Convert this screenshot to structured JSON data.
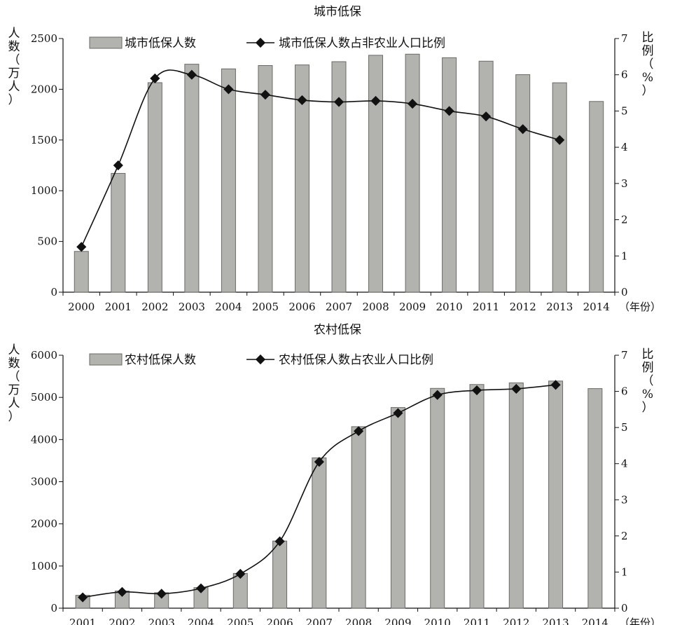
{
  "chart_data": [
    {
      "type": "bar+line",
      "title": "城市低保",
      "categories": [
        "2000",
        "2001",
        "2002",
        "2003",
        "2004",
        "2005",
        "2006",
        "2007",
        "2008",
        "2009",
        "2010",
        "2011",
        "2012",
        "2013",
        "2014"
      ],
      "x_unit": "（年份）",
      "y_left_label": [
        "人",
        "数",
        "（",
        "万",
        "人",
        "）"
      ],
      "y_right_label": [
        "比",
        "例",
        "（",
        "%",
        "）"
      ],
      "y_left_lim": [
        0,
        2500
      ],
      "y_left_ticks": [
        0,
        500,
        1000,
        1500,
        2000,
        2500
      ],
      "y_right_lim": [
        0,
        7
      ],
      "y_right_ticks": [
        0,
        1,
        2,
        3,
        4,
        5,
        6,
        7
      ],
      "series": [
        {
          "name": "城市低保人数",
          "kind": "bar",
          "axis": "left",
          "values": [
            402,
            1171,
            2065,
            2247,
            2201,
            2234,
            2240,
            2272,
            2335,
            2346,
            2311,
            2277,
            2144,
            2064,
            1880
          ]
        },
        {
          "name": "城市低保人数占非农业人口比例",
          "kind": "line",
          "axis": "right",
          "values": [
            1.25,
            3.5,
            5.9,
            6.0,
            5.6,
            5.45,
            5.3,
            5.25,
            5.28,
            5.2,
            5.0,
            4.85,
            4.5,
            4.2,
            null
          ]
        }
      ],
      "colors": {
        "bar_fill": "#b2b2ae",
        "bar_stroke": "#6a6a66",
        "line": "#111111"
      },
      "grid": false,
      "legend_position": "top"
    },
    {
      "type": "bar+line",
      "title": "农村低保",
      "categories": [
        "2001",
        "2002",
        "2003",
        "2004",
        "2005",
        "2006",
        "2007",
        "2008",
        "2009",
        "2010",
        "2011",
        "2012",
        "2013",
        "2014"
      ],
      "x_unit": "（年份）",
      "y_left_label": [
        "人",
        "数",
        "（",
        "万",
        "人",
        "）"
      ],
      "y_right_label": [
        "比",
        "例",
        "（",
        "%",
        "）"
      ],
      "y_left_lim": [
        0,
        6000
      ],
      "y_left_ticks": [
        0,
        1000,
        2000,
        3000,
        4000,
        5000,
        6000
      ],
      "y_right_lim": [
        0,
        7
      ],
      "y_right_ticks": [
        0,
        1,
        2,
        3,
        4,
        5,
        6,
        7
      ],
      "series": [
        {
          "name": "农村低保人数",
          "kind": "bar",
          "axis": "left",
          "values": [
            305,
            408,
            367,
            488,
            825,
            1593,
            3566,
            4306,
            4760,
            5214,
            5306,
            5345,
            5388,
            5209
          ]
        },
        {
          "name": "农村低保人数占农业人口比例",
          "kind": "line",
          "axis": "right",
          "values": [
            0.3,
            0.45,
            0.4,
            0.55,
            0.95,
            1.85,
            4.05,
            4.9,
            5.4,
            5.9,
            6.03,
            6.07,
            6.18,
            null
          ]
        }
      ],
      "colors": {
        "bar_fill": "#b2b2ae",
        "bar_stroke": "#6a6a66",
        "line": "#111111"
      },
      "grid": false,
      "legend_position": "top"
    }
  ]
}
